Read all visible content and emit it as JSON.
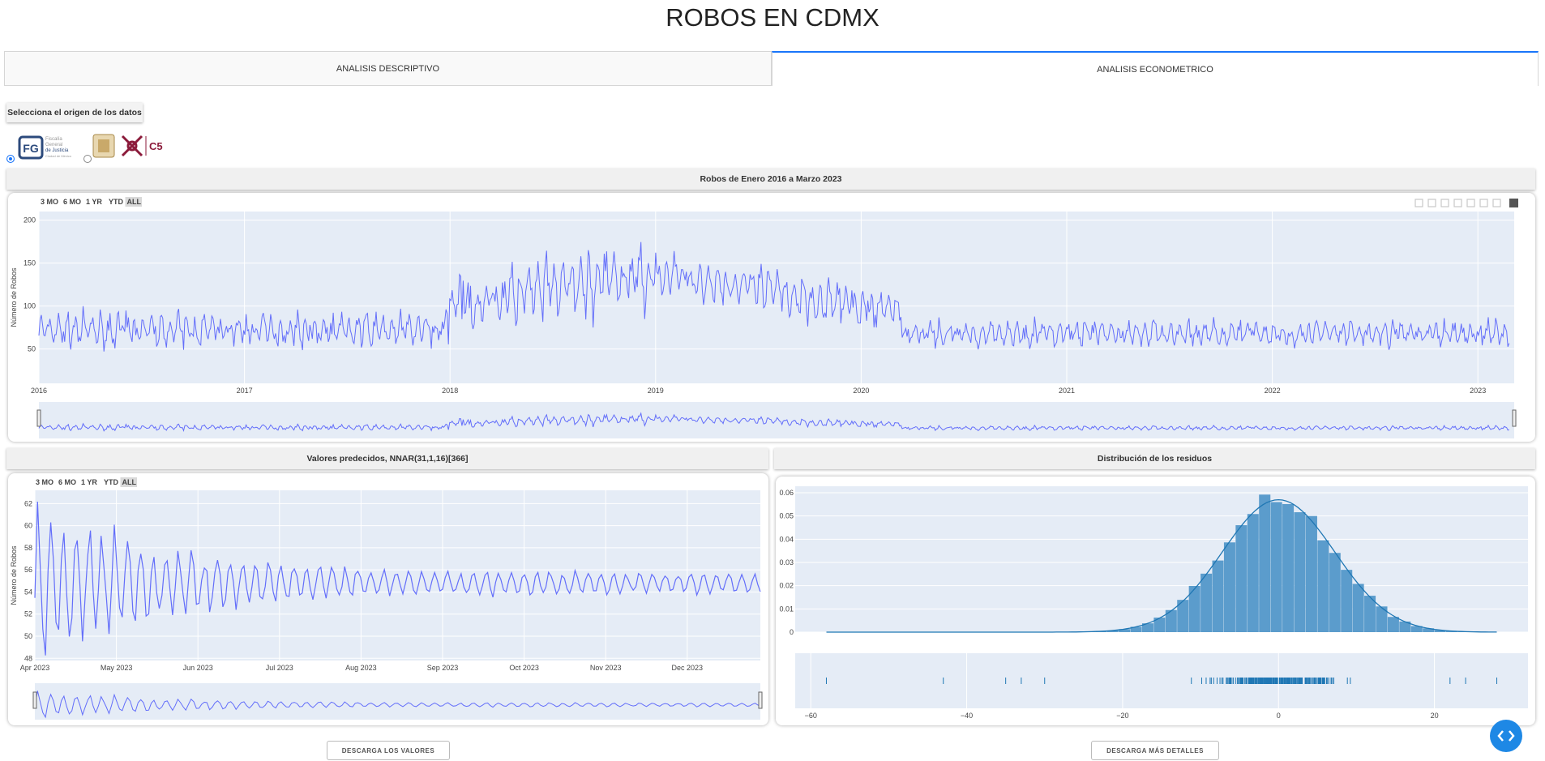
{
  "page": {
    "title": "ROBOS EN CDMX"
  },
  "tabs": [
    {
      "label": "ANALISIS DESCRIPTIVO",
      "active": false
    },
    {
      "label": "ANALISIS ECONOMETRICO",
      "active": true
    }
  ],
  "source": {
    "button_label": "Selecciona el origen de los datos",
    "options": [
      {
        "name": "Fiscalía General de Justicia",
        "logo_text": [
          "Fiscalía",
          "General",
          "de Justicia",
          "Ciudad de México"
        ],
        "selected": true
      },
      {
        "name": "C5",
        "logo_text": "C5",
        "selected": false
      }
    ]
  },
  "range_selector": [
    "3 MO",
    "6 MO",
    "1 YR",
    "YTD",
    "ALL"
  ],
  "colors": {
    "line": "#636efa",
    "hist": "#5b9ccc",
    "curve": "#1f77b4",
    "accent": "#1975fa"
  },
  "chart_main": {
    "title": "Robos de Enero 2016 a Marzo 2023",
    "chart_data": {
      "type": "line",
      "ylabel": "Número de Robos",
      "x_ticks": [
        "2016",
        "2017",
        "2018",
        "2019",
        "2020",
        "2021",
        "2022",
        "2023"
      ],
      "y_ticks": [
        "50",
        "100",
        "150",
        "200"
      ],
      "ylim": [
        10,
        210
      ],
      "xlim": [
        "2016-01-01",
        "2023-03-31"
      ],
      "segments": [
        {
          "from": "2016-01",
          "to": "2017-12",
          "level": 72,
          "amplitude": 22
        },
        {
          "from": "2018-01",
          "to": "2018-12",
          "level": 118,
          "amplitude": 42
        },
        {
          "from": "2019-01",
          "to": "2019-12",
          "level": 110,
          "amplitude": 30
        },
        {
          "from": "2020-01",
          "to": "2020-03",
          "level": 98,
          "amplitude": 28
        },
        {
          "from": "2020-04",
          "to": "2023-03",
          "level": 68,
          "amplitude": 18
        }
      ]
    }
  },
  "chart_pred": {
    "title": "Valores predecidos, NNAR(31,1,16)[366]",
    "chart_data": {
      "type": "line",
      "ylabel": "Número de Robos",
      "x_ticks": [
        "Apr 2023",
        "May 2023",
        "Jun 2023",
        "Jul 2023",
        "Aug 2023",
        "Sep 2023",
        "Oct 2023",
        "Nov 2023",
        "Dec 2023"
      ],
      "y_ticks": [
        "48",
        "50",
        "52",
        "54",
        "56",
        "58",
        "60",
        "62"
      ],
      "ylim": [
        47.8,
        63.2
      ],
      "xlim": [
        "2023-04-01",
        "2023-12-31"
      ],
      "center": 54.8
    }
  },
  "chart_resid": {
    "title": "Distribución de los residuos",
    "chart_data": {
      "type": "bar",
      "y_ticks": [
        "0",
        "0.01",
        "0.02",
        "0.03",
        "0.04",
        "0.05",
        "0.06"
      ],
      "x_ticks": [
        "−60",
        "−40",
        "−20",
        "0",
        "20"
      ],
      "xlim": [
        -62,
        32
      ],
      "ylim": [
        0,
        0.06
      ],
      "peak": 0.057
    }
  },
  "buttons": {
    "download_values": "DESCARGA LOS VALORES",
    "download_details": "DESCARGA MÁS DETALLES"
  }
}
